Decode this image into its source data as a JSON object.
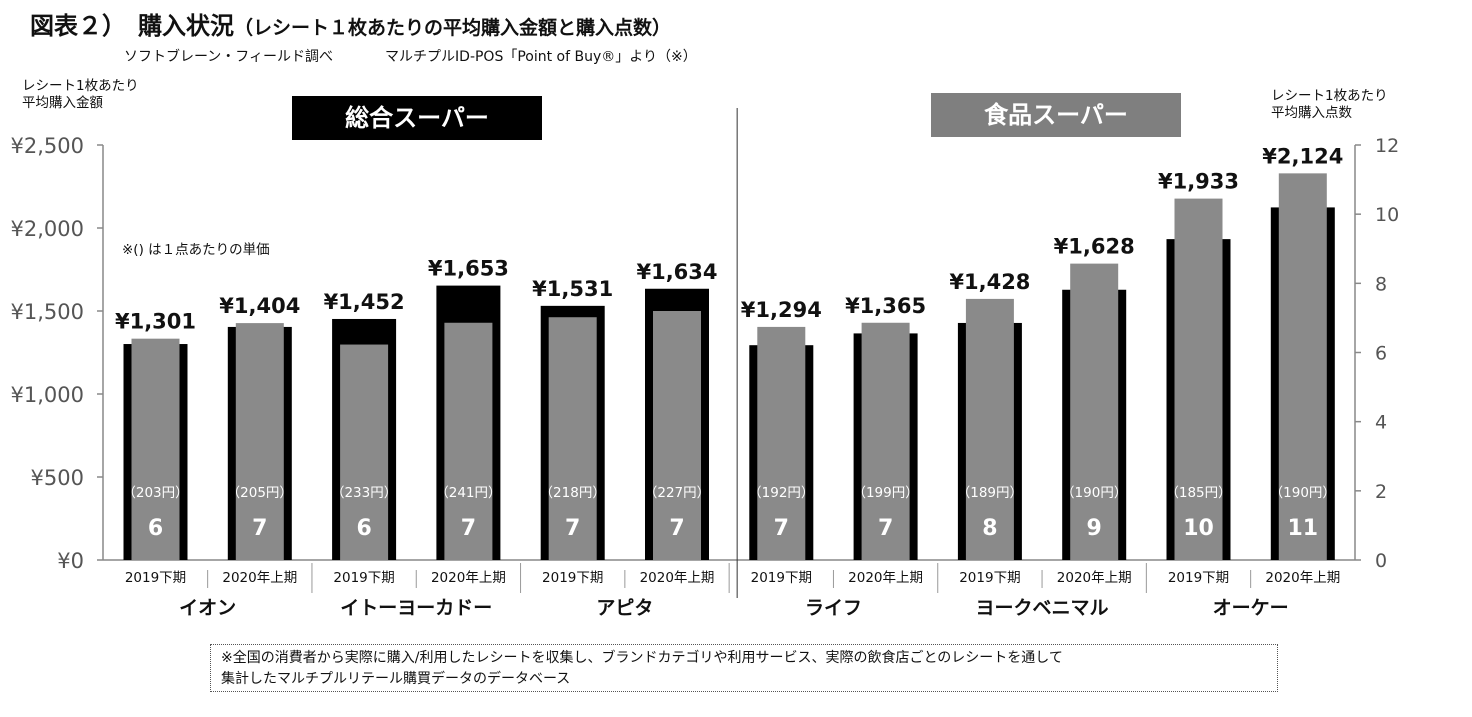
{
  "header": {
    "title_main": "図表２）　購入状況",
    "title_sub": "（レシート１枚あたりの平均購入金額と購入点数）",
    "source_1": "ソフトブレーン・フィールド調べ",
    "source_2": "マルチプルID-POS「Point of Buy®」より（※）"
  },
  "segments": {
    "gms": "総合スーパー",
    "food": "食品スーパー"
  },
  "note": "※() は１点あたりの単価",
  "footnote": {
    "line1": "※全国の消費者から実際に購入/利用したレシートを収集し、ブランドカテゴリや利用サービス、実際の飲食店ごとのレシートを通して",
    "line2": "集計したマルチプルリテール購買データのデータベース"
  },
  "chart_data": {
    "type": "bar",
    "left_axis_title": [
      "レシート1枚あたり",
      "平均購入金額"
    ],
    "right_axis_title": [
      "レシート1枚あたり",
      "平均購入点数"
    ],
    "left_ticks": [
      "¥0",
      "¥500",
      "¥1,000",
      "¥1,500",
      "¥2,000",
      "¥2,500"
    ],
    "right_ticks": [
      "0",
      "2",
      "4",
      "6",
      "8",
      "10",
      "12"
    ],
    "left_ylim": [
      0,
      2500
    ],
    "right_ylim": [
      0,
      12
    ],
    "grid": false,
    "series_colors": {
      "amount": "#000000",
      "items": "#8a8a8a"
    },
    "groups": [
      {
        "name": "イオン",
        "segment": "gms",
        "bars": [
          {
            "period": "2019下期",
            "amount": 1301,
            "amount_label": "¥1,301",
            "items": 6.4,
            "items_label": "6",
            "unit_label": "（203円）"
          },
          {
            "period": "2020年上期",
            "amount": 1404,
            "amount_label": "¥1,404",
            "items": 6.85,
            "items_label": "7",
            "unit_label": "（205円）"
          }
        ]
      },
      {
        "name": "イトーヨーカドー",
        "segment": "gms",
        "bars": [
          {
            "period": "2019下期",
            "amount": 1452,
            "amount_label": "¥1,452",
            "items": 6.23,
            "items_label": "6",
            "unit_label": "（233円）"
          },
          {
            "period": "2020年上期",
            "amount": 1653,
            "amount_label": "¥1,653",
            "items": 6.86,
            "items_label": "7",
            "unit_label": "（241円）"
          }
        ]
      },
      {
        "name": "アピタ",
        "segment": "gms",
        "bars": [
          {
            "period": "2019下期",
            "amount": 1531,
            "amount_label": "¥1,531",
            "items": 7.02,
            "items_label": "7",
            "unit_label": "（218円）"
          },
          {
            "period": "2020年上期",
            "amount": 1634,
            "amount_label": "¥1,634",
            "items": 7.2,
            "items_label": "7",
            "unit_label": "（227円）"
          }
        ]
      },
      {
        "name": "ライフ",
        "segment": "food",
        "bars": [
          {
            "period": "2019下期",
            "amount": 1294,
            "amount_label": "¥1,294",
            "items": 6.74,
            "items_label": "7",
            "unit_label": "（192円）"
          },
          {
            "period": "2020年上期",
            "amount": 1365,
            "amount_label": "¥1,365",
            "items": 6.86,
            "items_label": "7",
            "unit_label": "（199円）"
          }
        ]
      },
      {
        "name": "ヨークベニマル",
        "segment": "food",
        "bars": [
          {
            "period": "2019下期",
            "amount": 1428,
            "amount_label": "¥1,428",
            "items": 7.55,
            "items_label": "8",
            "unit_label": "（189円）"
          },
          {
            "period": "2020年上期",
            "amount": 1628,
            "amount_label": "¥1,628",
            "items": 8.57,
            "items_label": "9",
            "unit_label": "（190円）"
          }
        ]
      },
      {
        "name": "オーケー",
        "segment": "food",
        "bars": [
          {
            "period": "2019下期",
            "amount": 1933,
            "amount_label": "¥1,933",
            "items": 10.45,
            "items_label": "10",
            "unit_label": "（185円）"
          },
          {
            "period": "2020年上期",
            "amount": 2124,
            "amount_label": "¥2,124",
            "items": 11.18,
            "items_label": "11",
            "unit_label": "（190円）"
          }
        ]
      }
    ]
  }
}
